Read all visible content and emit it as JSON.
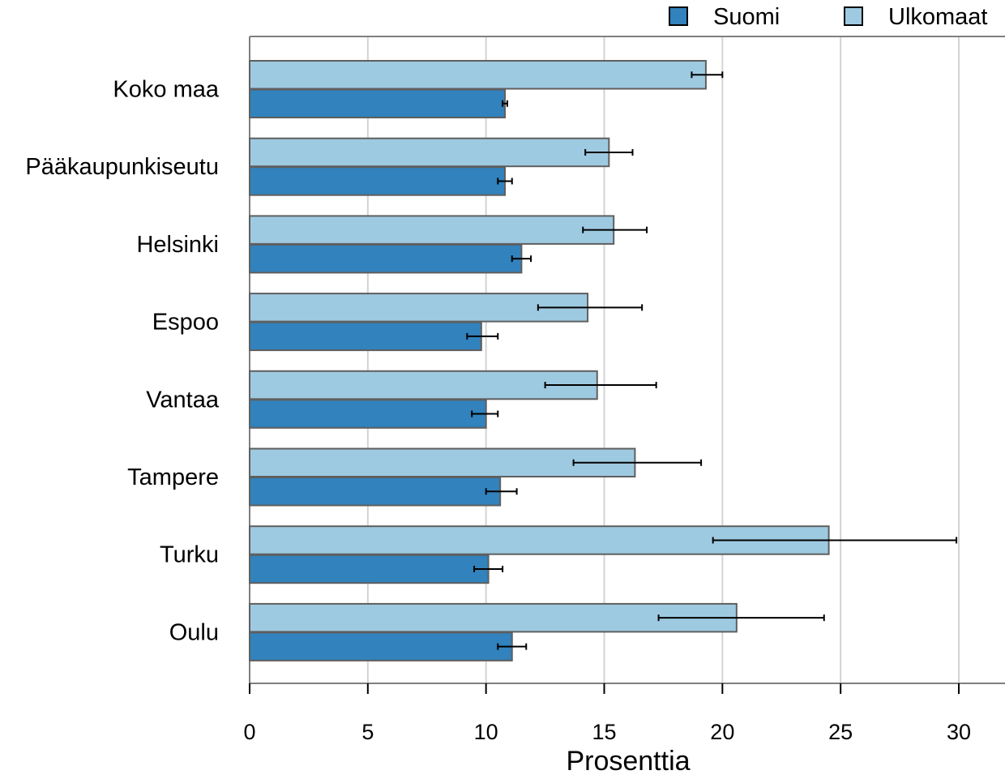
{
  "chart_data": {
    "type": "bar",
    "orientation": "horizontal",
    "xlabel": "Prosenttia",
    "xlim": [
      0,
      32
    ],
    "xticks": [
      0,
      5,
      10,
      15,
      20,
      25,
      30
    ],
    "grid": "vertical",
    "legend_position": "top-right",
    "categories": [
      "Koko maa",
      "Pääkaupunkiseutu",
      "Helsinki",
      "Espoo",
      "Vantaa",
      "Tampere",
      "Turku",
      "Oulu"
    ],
    "series": [
      {
        "name": "Suomi",
        "color": "#3182bd",
        "values": [
          10.8,
          10.8,
          11.5,
          9.8,
          10.0,
          10.6,
          10.1,
          11.1
        ],
        "error_low": [
          10.7,
          10.5,
          11.1,
          9.2,
          9.4,
          10.0,
          9.5,
          10.5
        ],
        "error_high": [
          10.9,
          11.1,
          11.9,
          10.5,
          10.5,
          11.3,
          10.7,
          11.7
        ]
      },
      {
        "name": "Ulkomaat",
        "color": "#9ecae1",
        "values": [
          19.3,
          15.2,
          15.4,
          14.3,
          14.7,
          16.3,
          24.5,
          20.6
        ],
        "error_low": [
          18.7,
          14.2,
          14.1,
          12.2,
          12.5,
          13.7,
          19.6,
          17.3
        ],
        "error_high": [
          20.0,
          16.2,
          16.8,
          16.6,
          17.2,
          19.1,
          29.9,
          24.3
        ]
      }
    ]
  }
}
